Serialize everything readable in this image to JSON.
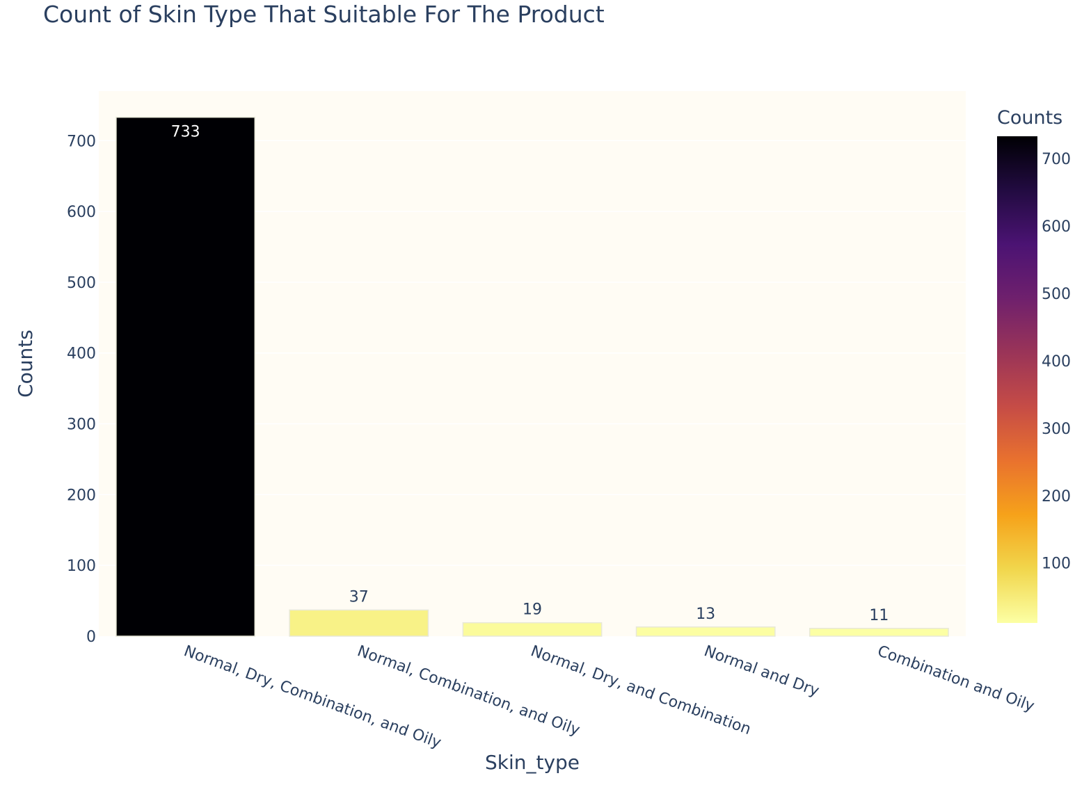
{
  "chart_data": {
    "type": "bar",
    "title": "Count of Skin Type That Suitable For The Product",
    "xlabel": "Skin_type",
    "ylabel": "Counts",
    "categories": [
      "Normal, Dry, Combination, and Oily",
      "Normal, Combination, and Oily",
      "Normal, Dry, and Combination",
      "Normal and Dry",
      "Combination and Oily"
    ],
    "values": [
      733,
      37,
      19,
      13,
      11
    ],
    "data_labels": [
      "733",
      "37",
      "19",
      "13",
      "11"
    ],
    "ylim": [
      0,
      770
    ],
    "yticks": [
      0,
      100,
      200,
      300,
      400,
      500,
      600,
      700
    ],
    "grid": true,
    "colorbar": {
      "title": "Counts",
      "colorscale": "inferno_r",
      "range": [
        11,
        733
      ],
      "ticks": [
        100,
        200,
        300,
        400,
        500,
        600,
        700
      ]
    }
  },
  "colors": {
    "plot_bg": "#fffcf4",
    "grid": "#ffffff",
    "text": "#2a3f5f",
    "bar_outline": "#e8e8d8"
  }
}
